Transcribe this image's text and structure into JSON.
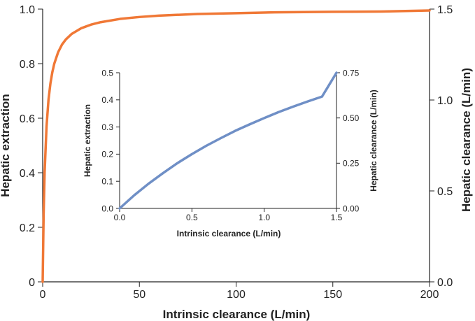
{
  "colors": {
    "main_curve": "#f07836",
    "inset_curve": "#6f8fc6",
    "axis": "#222222"
  },
  "chart_data": [
    {
      "type": "line",
      "id": "main",
      "xlabel": "Intrinsic clearance (L/min)",
      "ylabel": "Hepatic extraction",
      "y2label": "Hepatic clearance (L/min)",
      "xlim": [
        0,
        200
      ],
      "ylim": [
        0,
        1.0
      ],
      "y2lim": [
        0,
        1.5
      ],
      "xticks": [
        "0",
        "50",
        "100",
        "150",
        "200"
      ],
      "xtick_values": [
        0,
        50,
        100,
        150,
        200
      ],
      "yticks": [
        "0",
        "0.2",
        "0.4",
        "0.6",
        "0.8",
        "1.0"
      ],
      "ytick_values": [
        0,
        0.2,
        0.4,
        0.6,
        0.8,
        1.0
      ],
      "y2ticks": [
        "0.0",
        "0.5",
        "1.0",
        "1.5"
      ],
      "y2tick_values": [
        0,
        0.5,
        1.0,
        1.5
      ],
      "grid": false,
      "series": [
        {
          "x": [
            0,
            0.5,
            1,
            2,
            3,
            4,
            5,
            6,
            8,
            10,
            12,
            15,
            20,
            25,
            30,
            40,
            50,
            60,
            80,
            100,
            120,
            150,
            175,
            200
          ],
          "y": [
            0,
            0.25,
            0.4,
            0.57,
            0.667,
            0.727,
            0.769,
            0.8,
            0.842,
            0.87,
            0.889,
            0.909,
            0.93,
            0.943,
            0.952,
            0.964,
            0.971,
            0.976,
            0.982,
            0.985,
            0.988,
            0.99,
            0.991,
            0.995
          ]
        }
      ]
    },
    {
      "type": "line",
      "id": "inset",
      "xlabel": "Intrinsic clearance (L/min)",
      "ylabel": "Hepatic extraction",
      "y2label": "Hepatic clearance (L/min)",
      "xlim": [
        0,
        1.5
      ],
      "ylim": [
        0,
        0.5
      ],
      "y2lim": [
        0,
        0.75
      ],
      "xticks": [
        "0.0",
        "0.5",
        "1.0",
        "1.5"
      ],
      "xtick_values": [
        0,
        0.5,
        1.0,
        1.5
      ],
      "yticks": [
        "0.0",
        "0.1",
        "0.2",
        "0.3",
        "0.4",
        "0.5"
      ],
      "ytick_values": [
        0,
        0.1,
        0.2,
        0.3,
        0.4,
        0.5
      ],
      "y2ticks": [
        "0.00",
        "0.25",
        "0.50",
        "0.75"
      ],
      "y2tick_values": [
        0,
        0.25,
        0.5,
        0.75
      ],
      "grid": false,
      "series": [
        {
          "x": [
            0,
            0.1,
            0.2,
            0.3,
            0.4,
            0.5,
            0.6,
            0.7,
            0.8,
            0.9,
            1.0,
            1.1,
            1.2,
            1.3,
            1.4,
            1.5
          ],
          "y": [
            0,
            0.048,
            0.091,
            0.13,
            0.167,
            0.2,
            0.231,
            0.259,
            0.286,
            0.31,
            0.333,
            0.355,
            0.375,
            0.394,
            0.412,
            0.5
          ]
        }
      ]
    }
  ]
}
